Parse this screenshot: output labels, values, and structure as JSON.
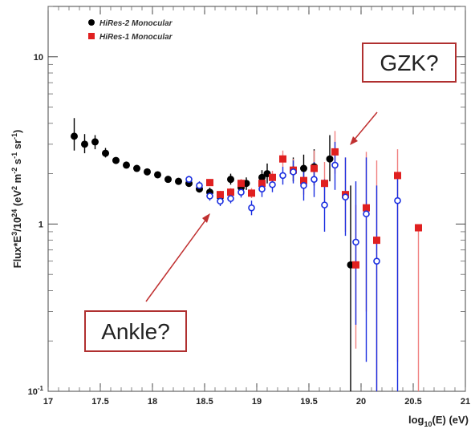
{
  "chart_data": {
    "type": "scatter",
    "title": "",
    "xlabel": "log10(E) (eV)",
    "xlabel_parts": {
      "pre": "log",
      "sub": "10",
      "post": "(E) (eV)"
    },
    "ylabel": "Flux*E^3/10^24 (eV^2 m^-2 s^-1 sr^-1)",
    "ylabel_parts": {
      "a": "Flux*E",
      "a_sup": "3",
      "b": "/10",
      "b_sup": "24",
      "c": " (eV",
      "c_sup": "2",
      "d": " m",
      "d_sup": "-2",
      "e": " s",
      "e_sup": "-1",
      "f": " sr",
      "f_sup": "-1",
      "g": ")"
    },
    "xlim": [
      17,
      21
    ],
    "ylim": [
      0.1,
      20
    ],
    "yscale": "log",
    "x_ticks": [
      "17",
      "17.5",
      "18",
      "18.5",
      "19",
      "19.5",
      "20",
      "20.5",
      "21"
    ],
    "x_tick_values": [
      17,
      17.5,
      18,
      18.5,
      19,
      19.5,
      20,
      20.5,
      21
    ],
    "y_ticks": [
      "10",
      "1",
      "10^-1"
    ],
    "y_tick_values": [
      10,
      1,
      0.1
    ],
    "legend_position": "top-left",
    "series": [
      {
        "name": "HiRes-2 Monocular",
        "color": "#000000",
        "marker": "circle",
        "points": [
          {
            "x": 17.25,
            "y": 3.35,
            "lo": 2.75,
            "hi": 4.3
          },
          {
            "x": 17.35,
            "y": 3.0,
            "lo": 2.65,
            "hi": 3.45
          },
          {
            "x": 17.45,
            "y": 3.1,
            "lo": 2.8,
            "hi": 3.4
          },
          {
            "x": 17.55,
            "y": 2.65,
            "lo": 2.5,
            "hi": 2.85
          },
          {
            "x": 17.65,
            "y": 2.4,
            "lo": 2.3,
            "hi": 2.5
          },
          {
            "x": 17.75,
            "y": 2.25,
            "lo": 2.18,
            "hi": 2.33
          },
          {
            "x": 17.85,
            "y": 2.15,
            "lo": 2.1,
            "hi": 2.2
          },
          {
            "x": 17.95,
            "y": 2.05,
            "lo": 2.0,
            "hi": 2.1
          },
          {
            "x": 18.05,
            "y": 1.97,
            "lo": 1.92,
            "hi": 2.02
          },
          {
            "x": 18.15,
            "y": 1.85,
            "lo": 1.8,
            "hi": 1.9
          },
          {
            "x": 18.25,
            "y": 1.8,
            "lo": 1.74,
            "hi": 1.86
          },
          {
            "x": 18.35,
            "y": 1.75,
            "lo": 1.68,
            "hi": 1.83
          },
          {
            "x": 18.45,
            "y": 1.62,
            "lo": 1.55,
            "hi": 1.7
          },
          {
            "x": 18.55,
            "y": 1.55,
            "lo": 1.46,
            "hi": 1.65
          },
          {
            "x": 18.65,
            "y": 1.45,
            "lo": 1.35,
            "hi": 1.56
          },
          {
            "x": 18.75,
            "y": 1.85,
            "lo": 1.72,
            "hi": 2.0
          },
          {
            "x": 18.85,
            "y": 1.65,
            "lo": 1.5,
            "hi": 1.82
          },
          {
            "x": 18.9,
            "y": 1.75,
            "lo": 1.6,
            "hi": 1.9
          },
          {
            "x": 19.05,
            "y": 1.9,
            "lo": 1.7,
            "hi": 2.1
          },
          {
            "x": 19.1,
            "y": 2.0,
            "lo": 1.75,
            "hi": 2.3
          },
          {
            "x": 19.35,
            "y": 2.1,
            "lo": 1.8,
            "hi": 2.5
          },
          {
            "x": 19.45,
            "y": 2.15,
            "lo": 1.8,
            "hi": 2.6
          },
          {
            "x": 19.55,
            "y": 2.2,
            "lo": 1.7,
            "hi": 2.8
          },
          {
            "x": 19.7,
            "y": 2.45,
            "lo": 1.8,
            "hi": 3.4
          },
          {
            "x": 19.9,
            "y": 0.57,
            "lo": 0.1,
            "hi": 1.7
          }
        ]
      },
      {
        "name": "HiRes-1 Monocular",
        "color": "#e02020",
        "marker": "square",
        "points": [
          {
            "x": 18.55,
            "y": 1.77,
            "lo": 1.69,
            "hi": 1.85
          },
          {
            "x": 18.65,
            "y": 1.5,
            "lo": 1.43,
            "hi": 1.58
          },
          {
            "x": 18.75,
            "y": 1.55,
            "lo": 1.47,
            "hi": 1.64
          },
          {
            "x": 18.85,
            "y": 1.75,
            "lo": 1.65,
            "hi": 1.86
          },
          {
            "x": 18.95,
            "y": 1.53,
            "lo": 1.43,
            "hi": 1.64
          },
          {
            "x": 19.05,
            "y": 1.75,
            "lo": 1.62,
            "hi": 1.9
          },
          {
            "x": 19.15,
            "y": 1.9,
            "lo": 1.74,
            "hi": 2.08
          },
          {
            "x": 19.25,
            "y": 2.45,
            "lo": 2.2,
            "hi": 2.75
          },
          {
            "x": 19.35,
            "y": 2.1,
            "lo": 1.82,
            "hi": 2.45
          },
          {
            "x": 19.45,
            "y": 1.82,
            "lo": 1.5,
            "hi": 2.2
          },
          {
            "x": 19.55,
            "y": 2.15,
            "lo": 1.7,
            "hi": 2.75
          },
          {
            "x": 19.65,
            "y": 1.75,
            "lo": 1.3,
            "hi": 2.35
          },
          {
            "x": 19.75,
            "y": 2.7,
            "lo": 2.0,
            "hi": 3.6
          },
          {
            "x": 19.85,
            "y": 1.5,
            "lo": 0.9,
            "hi": 2.5
          },
          {
            "x": 19.95,
            "y": 0.57,
            "lo": 0.18,
            "hi": 1.3
          },
          {
            "x": 20.05,
            "y": 1.25,
            "lo": 0.3,
            "hi": 2.7
          },
          {
            "x": 20.15,
            "y": 0.8,
            "lo": 0.1,
            "hi": 2.4
          },
          {
            "x": 20.35,
            "y": 1.95,
            "lo": 0.15,
            "hi": 2.8
          },
          {
            "x": 20.55,
            "y": 0.95,
            "lo": 0.1,
            "hi": 0.95
          }
        ]
      },
      {
        "name": "",
        "color": "#1a2ee0",
        "marker": "open-circle",
        "points": [
          {
            "x": 18.35,
            "y": 1.85,
            "lo": 1.76,
            "hi": 1.94
          },
          {
            "x": 18.45,
            "y": 1.7,
            "lo": 1.6,
            "hi": 1.8
          },
          {
            "x": 18.55,
            "y": 1.47,
            "lo": 1.38,
            "hi": 1.56
          },
          {
            "x": 18.65,
            "y": 1.37,
            "lo": 1.28,
            "hi": 1.47
          },
          {
            "x": 18.75,
            "y": 1.42,
            "lo": 1.33,
            "hi": 1.52
          },
          {
            "x": 18.85,
            "y": 1.55,
            "lo": 1.44,
            "hi": 1.67
          },
          {
            "x": 18.95,
            "y": 1.25,
            "lo": 1.13,
            "hi": 1.38
          },
          {
            "x": 19.05,
            "y": 1.62,
            "lo": 1.45,
            "hi": 1.8
          },
          {
            "x": 19.15,
            "y": 1.72,
            "lo": 1.55,
            "hi": 1.92
          },
          {
            "x": 19.25,
            "y": 1.95,
            "lo": 1.72,
            "hi": 2.2
          },
          {
            "x": 19.35,
            "y": 2.05,
            "lo": 1.75,
            "hi": 2.4
          },
          {
            "x": 19.45,
            "y": 1.7,
            "lo": 1.38,
            "hi": 2.1
          },
          {
            "x": 19.55,
            "y": 1.85,
            "lo": 1.45,
            "hi": 2.35
          },
          {
            "x": 19.65,
            "y": 1.3,
            "lo": 0.9,
            "hi": 1.85
          },
          {
            "x": 19.75,
            "y": 2.25,
            "lo": 1.6,
            "hi": 3.1
          },
          {
            "x": 19.85,
            "y": 1.45,
            "lo": 0.85,
            "hi": 2.5
          },
          {
            "x": 19.95,
            "y": 0.78,
            "lo": 0.25,
            "hi": 1.8
          },
          {
            "x": 20.05,
            "y": 1.15,
            "lo": 0.15,
            "hi": 2.5
          },
          {
            "x": 20.15,
            "y": 0.6,
            "lo": 0.1,
            "hi": 1.7
          },
          {
            "x": 20.35,
            "y": 1.38,
            "lo": 0.1,
            "hi": 2.0
          }
        ]
      }
    ],
    "annotations": [
      {
        "text": "GZK?",
        "border_color": "#b03030",
        "arrow_color": "#c03030",
        "target": {
          "x": 19.82,
          "y": 3.0
        }
      },
      {
        "text": "Ankle?",
        "border_color": "#b03030",
        "arrow_color": "#c03030",
        "target": {
          "x": 18.6,
          "y": 1.55
        }
      }
    ]
  }
}
